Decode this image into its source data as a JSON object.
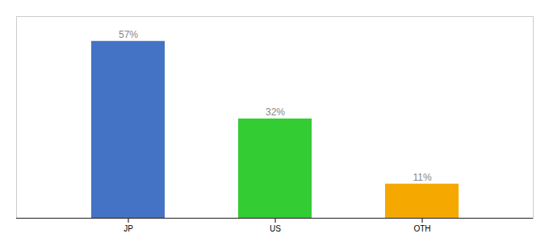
{
  "chart_data": {
    "type": "bar",
    "categories": [
      "JP",
      "US",
      "OTH"
    ],
    "values": [
      57,
      32,
      11
    ],
    "value_labels": [
      "57%",
      "32%",
      "11%"
    ],
    "colors": [
      "#4472c4",
      "#33cc33",
      "#f5a800"
    ],
    "ylim": [
      0,
      65
    ],
    "grid": false,
    "data_labels": true,
    "tick_labels": "x"
  }
}
